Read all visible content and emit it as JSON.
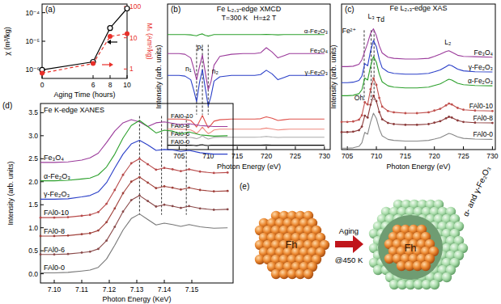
{
  "chart_data": [
    {
      "panel": "(a)",
      "type": "line",
      "log": "y",
      "x_label": "Aging Time (hours)",
      "y_label": "χ (m³/kg)",
      "y2_label": "Mₛ (Am²/kg)",
      "x": [
        0,
        6,
        8,
        10
      ],
      "xlim": [
        0,
        10
      ],
      "xticks": [
        0,
        6,
        8,
        10
      ],
      "ylim": [
        5e-07,
        0.0002
      ],
      "yticks": [
        {
          "value": 1e-06,
          "label": "10⁻⁶"
        },
        {
          "value": 1e-05,
          "label": "10⁻⁵"
        },
        {
          "value": 0.0001,
          "label": "10⁻⁴"
        }
      ],
      "y2lim": [
        0.5,
        120
      ],
      "y2ticks": [
        1,
        10,
        100
      ],
      "series": [
        {
          "color": "#000000",
          "marker": "open_circle",
          "line_style": "solid",
          "values": [
            1e-06,
            1.9e-06,
            2.9e-05,
            0.00014
          ]
        },
        {
          "color": "#e8302a",
          "marker": "circle",
          "line_style": "dashed",
          "axis": "y2",
          "values": [
            0.74,
            1.5,
            11,
            13.5
          ]
        }
      ]
    },
    {
      "panel": "(b)",
      "type": "line",
      "title": "Fe L₂,₃-edge XMCD",
      "subtitle": "T=300 K   H=±2 T",
      "x_label": "Photon Energy (eV)",
      "y_label": "Intensity (arb. units)",
      "tick_labels": "x",
      "x": [
        703,
        705,
        706,
        707,
        707.5,
        708,
        708.5,
        709,
        709.5,
        710,
        710.5,
        711,
        712,
        714,
        716,
        718,
        719,
        720,
        721,
        722,
        723,
        724,
        726,
        728,
        730
      ],
      "xlim": [
        703,
        731
      ],
      "xticks": [
        705,
        710,
        715,
        720,
        725,
        730
      ],
      "ylim": [
        0,
        10
      ],
      "reference_lines": [
        708,
        709,
        710
      ],
      "annotations": [
        {
          "text": "n₁",
          "x": 706.6,
          "y": 5.4
        },
        {
          "text": "p₁",
          "x": 708.6,
          "y": 6.9
        },
        {
          "text": "n₂",
          "x": 711.2,
          "y": 5.2
        }
      ],
      "series": [
        {
          "name": "α-Fe₂O₃",
          "color": "#2ca02c",
          "values": [
            7.9,
            7.9,
            7.9,
            7.88,
            7.85,
            7.82,
            7.9,
            7.95,
            7.85,
            7.8,
            7.85,
            7.9,
            7.9,
            7.9,
            7.9,
            7.9,
            7.9,
            7.92,
            7.9,
            7.88,
            7.9,
            7.9,
            7.9,
            7.9,
            7.9
          ]
        },
        {
          "name": "Fe₃O₄",
          "color": "#9b3b9b",
          "values": [
            6.6,
            6.6,
            6.55,
            6.3,
            5.6,
            4.8,
            5.7,
            6.5,
            5.3,
            4.1,
            4.7,
            5.8,
            6.4,
            6.55,
            6.6,
            6.6,
            6.65,
            7.0,
            6.7,
            6.3,
            6.45,
            6.6,
            6.6,
            6.6,
            6.6
          ]
        },
        {
          "name": "γ-Fe₂O₃",
          "color": "#2a3fc8",
          "values": [
            5.1,
            5.1,
            5.05,
            4.8,
            4.1,
            3.3,
            4.6,
            5.5,
            4.2,
            3.0,
            3.7,
            4.7,
            5.0,
            5.1,
            5.1,
            5.1,
            5.15,
            5.45,
            5.2,
            4.8,
            4.95,
            5.1,
            5.1,
            5.1,
            5.1
          ]
        },
        {
          "name": "FAl0-10",
          "color": "#e0504a",
          "values": [
            2.1,
            2.1,
            2.08,
            2.0,
            1.8,
            1.55,
            1.95,
            2.35,
            1.9,
            1.5,
            1.7,
            1.95,
            2.05,
            2.1,
            2.1,
            2.1,
            2.12,
            2.25,
            2.15,
            2.0,
            2.05,
            2.1,
            2.1,
            2.1,
            2.1
          ]
        },
        {
          "name": "FAl0-8",
          "color": "#f08a80",
          "values": [
            1.4,
            1.4,
            1.39,
            1.35,
            1.25,
            1.1,
            1.3,
            1.55,
            1.3,
            1.1,
            1.2,
            1.35,
            1.4,
            1.4,
            1.4,
            1.4,
            1.41,
            1.48,
            1.42,
            1.35,
            1.38,
            1.4,
            1.4,
            1.4,
            1.4
          ]
        },
        {
          "name": "FAl0-6",
          "color": "#aaaaaa",
          "values": [
            0.85,
            0.85,
            0.85,
            0.83,
            0.8,
            0.75,
            0.82,
            0.95,
            0.82,
            0.72,
            0.78,
            0.84,
            0.85,
            0.85,
            0.85,
            0.85,
            0.86,
            0.9,
            0.86,
            0.83,
            0.85,
            0.85,
            0.85,
            0.85,
            0.85
          ]
        },
        {
          "name": "FAl0-0",
          "color": "#000000",
          "values": [
            0.3,
            0.3,
            0.3,
            0.3,
            0.29,
            0.27,
            0.31,
            0.33,
            0.29,
            0.28,
            0.3,
            0.3,
            0.3,
            0.3,
            0.3,
            0.3,
            0.3,
            0.31,
            0.3,
            0.3,
            0.3,
            0.3,
            0.3,
            0.3,
            0.3
          ]
        }
      ]
    },
    {
      "panel": "(c)",
      "type": "line",
      "title": "Fe L₂,₃-edge XAS",
      "x_label": "Photon Energy (eV)",
      "y_label": "Intensity (arb. units)",
      "tick_labels": "x",
      "x": [
        704,
        705,
        706,
        707,
        707.5,
        708,
        708.5,
        709,
        709.5,
        710,
        710.5,
        711,
        712,
        713,
        715,
        717,
        719,
        720,
        721,
        722,
        722.5,
        723,
        724,
        725,
        727,
        730
      ],
      "xlim": [
        704,
        730.5
      ],
      "xticks": [
        705,
        710,
        715,
        720,
        725,
        730
      ],
      "ylim": [
        0,
        10
      ],
      "reference_lines": [
        707.9,
        709.1,
        709.6
      ],
      "annotations": [
        {
          "text": "L₃",
          "x": 709.1,
          "y": 9.0
        },
        {
          "text": "L₂",
          "x": 722.3,
          "y": 7.2
        },
        {
          "text": "Fe²⁺",
          "x": 705.3,
          "y": 8.0
        },
        {
          "text": "Td",
          "x": 710.7,
          "y": 8.8
        },
        {
          "text": "Oh",
          "x": 707.0,
          "y": 3.4
        }
      ],
      "series": [
        {
          "name": "Fe₃O₄",
          "color": "#9b3b9b",
          "values": [
            5.7,
            5.7,
            5.73,
            5.86,
            6.17,
            6.74,
            7.31,
            7.99,
            8.3,
            7.83,
            7.13,
            6.64,
            6.35,
            6.27,
            6.22,
            6.22,
            6.27,
            6.4,
            6.56,
            6.74,
            6.79,
            6.69,
            6.48,
            6.4,
            6.38,
            6.35
          ]
        },
        {
          "name": "γ-Fe₂O₃",
          "color": "#2a3fc8",
          "values": [
            4.6,
            4.6,
            4.63,
            4.75,
            5.04,
            5.91,
            5.76,
            6.78,
            7.5,
            7.07,
            6.2,
            5.62,
            5.33,
            5.24,
            5.18,
            5.18,
            5.24,
            5.35,
            5.47,
            5.7,
            5.82,
            5.76,
            5.53,
            5.41,
            5.35,
            5.33
          ]
        },
        {
          "name": "α-Fe₂O₃",
          "color": "#2ca02c",
          "values": [
            3.7,
            3.7,
            3.73,
            3.84,
            4.11,
            4.92,
            4.78,
            5.73,
            6.4,
            6.0,
            5.19,
            4.65,
            4.38,
            4.29,
            4.24,
            4.24,
            4.29,
            4.4,
            4.51,
            4.73,
            4.83,
            4.78,
            4.56,
            4.46,
            4.4,
            4.38
          ]
        },
        {
          "name": "FAl0-10",
          "color": "#c0504d",
          "marker": "circle",
          "values": [
            1.9,
            1.9,
            1.93,
            2.05,
            2.35,
            3.25,
            3.1,
            4.15,
            4.9,
            4.45,
            3.55,
            2.95,
            2.65,
            2.56,
            2.5,
            2.5,
            2.56,
            2.68,
            2.8,
            3.04,
            3.16,
            3.1,
            2.86,
            2.74,
            2.68,
            2.65
          ]
        },
        {
          "name": "FAl0-8",
          "color": "#8b3a3a",
          "marker": "circle",
          "values": [
            1.2,
            1.2,
            1.23,
            1.33,
            1.58,
            2.33,
            2.2,
            3.08,
            3.7,
            3.33,
            2.58,
            2.08,
            1.83,
            1.75,
            1.7,
            1.7,
            1.75,
            1.85,
            1.95,
            2.15,
            2.25,
            2.2,
            2.0,
            1.9,
            1.85,
            1.83
          ]
        },
        {
          "name": "FAl0-0",
          "color": "#888888",
          "values": [
            0.1,
            0.1,
            0.12,
            0.22,
            0.46,
            1.18,
            1.06,
            1.9,
            2.5,
            2.14,
            1.42,
            0.94,
            0.7,
            0.63,
            0.58,
            0.58,
            0.63,
            0.72,
            0.82,
            1.01,
            1.11,
            1.06,
            0.87,
            0.77,
            0.72,
            0.7
          ]
        }
      ]
    },
    {
      "panel": "(d)",
      "type": "line",
      "title": "Fe K-edge XANES",
      "x_label": "Photon Energy (KeV)",
      "y_label": "Intensity (arb. units)",
      "x": [
        7.095,
        7.1,
        7.105,
        7.11,
        7.113,
        7.116,
        7.119,
        7.122,
        7.125,
        7.128,
        7.131,
        7.134,
        7.137,
        7.14,
        7.143,
        7.146,
        7.149,
        7.153,
        7.158,
        7.163
      ],
      "xlim": [
        7.095,
        7.165
      ],
      "xticks": [
        {
          "value": 7.1,
          "label": "7.10"
        },
        7.11,
        7.12,
        7.13,
        7.14,
        7.15
      ],
      "ylim": [
        -0.2,
        3.7
      ],
      "yticks": [
        {
          "value": 0,
          "label": "0.0"
        },
        0.5,
        {
          "value": 1,
          "label": "1.0"
        },
        1.5,
        {
          "value": 2,
          "label": "2.0"
        },
        2.5,
        {
          "value": 3,
          "label": "3.0"
        },
        3.5
      ],
      "reference_lines": [
        7.131,
        7.139,
        7.148
      ],
      "series": [
        {
          "name": "Fe₃O₄",
          "color": "#9b3b9b",
          "values": [
            2.42,
            2.42,
            2.43,
            2.47,
            2.52,
            2.62,
            2.85,
            3.1,
            3.28,
            3.35,
            3.3,
            3.2,
            3.28,
            3.3,
            3.27,
            3.24,
            3.26,
            3.22,
            3.2,
            3.2
          ]
        },
        {
          "name": "α-Fe₂O₃",
          "color": "#2ca02c",
          "values": [
            2.02,
            2.02,
            2.03,
            2.06,
            2.08,
            2.15,
            2.32,
            2.6,
            2.95,
            3.22,
            3.33,
            3.2,
            3.06,
            3.12,
            3.1,
            3.04,
            3.08,
            3.02,
            2.99,
            3.0
          ]
        },
        {
          "name": "γ-Fe₂O₃",
          "color": "#2a3fc8",
          "values": [
            1.62,
            1.62,
            1.63,
            1.67,
            1.7,
            1.78,
            1.98,
            2.3,
            2.6,
            2.82,
            2.9,
            2.8,
            2.68,
            2.7,
            2.69,
            2.66,
            2.68,
            2.63,
            2.6,
            2.6
          ]
        },
        {
          "name": "FAl0-10",
          "color": "#b84a4a",
          "marker": "circle",
          "values": [
            1.22,
            1.22,
            1.23,
            1.26,
            1.28,
            1.34,
            1.52,
            1.82,
            2.15,
            2.4,
            2.5,
            2.38,
            2.26,
            2.3,
            2.27,
            2.23,
            2.27,
            2.22,
            2.19,
            2.2
          ]
        },
        {
          "name": "FAl0-8",
          "color": "#a0403a",
          "marker": "circle",
          "values": [
            0.82,
            0.82,
            0.83,
            0.86,
            0.88,
            0.94,
            1.12,
            1.42,
            1.75,
            2.0,
            2.1,
            1.98,
            1.86,
            1.9,
            1.87,
            1.83,
            1.87,
            1.82,
            1.79,
            1.8
          ]
        },
        {
          "name": "FAl0-6",
          "color": "#8a4a4a",
          "marker": "circle",
          "values": [
            0.42,
            0.42,
            0.43,
            0.46,
            0.48,
            0.54,
            0.72,
            1.02,
            1.35,
            1.6,
            1.7,
            1.58,
            1.46,
            1.5,
            1.47,
            1.43,
            1.47,
            1.42,
            1.39,
            1.4
          ]
        },
        {
          "name": "FAl0-0",
          "color": "#777777",
          "values": [
            0.02,
            0.02,
            0.03,
            0.06,
            0.08,
            0.14,
            0.32,
            0.62,
            0.95,
            1.2,
            1.3,
            1.18,
            1.06,
            1.1,
            1.07,
            1.03,
            1.07,
            1.02,
            0.99,
            1.0
          ]
        }
      ]
    }
  ],
  "diagram": {
    "panel": "(e)",
    "left_label": "Fh",
    "arrow_label_top": "Aging",
    "arrow_label_bottom": "@450 K",
    "right_core_label": "Fh",
    "right_shell_label": "α- and γ-Fe₂O₃"
  }
}
